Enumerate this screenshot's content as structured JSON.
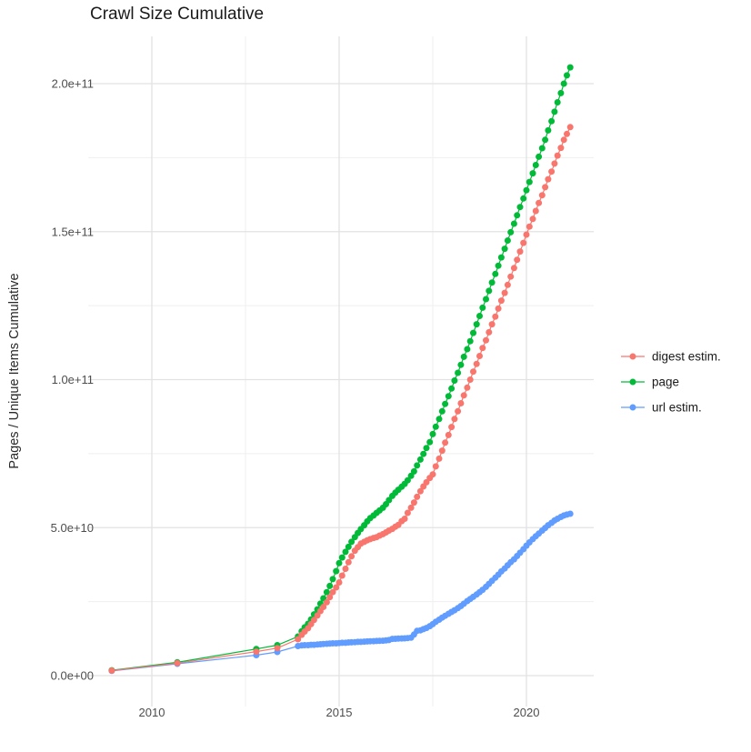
{
  "title": "Crawl Size Cumulative",
  "axes": {
    "y_title": "Pages / Unique Items Cumulative",
    "y_ticks": [
      {
        "label": "0.0e+00",
        "value_billions": 0
      },
      {
        "label": "5.0e+10",
        "value_billions": 50
      },
      {
        "label": "1.0e+11",
        "value_billions": 100
      },
      {
        "label": "1.5e+11",
        "value_billions": 150
      },
      {
        "label": "2.0e+11",
        "value_billions": 200
      }
    ],
    "x_ticks": [
      {
        "label": "2010",
        "value": 2010
      },
      {
        "label": "2015",
        "value": 2015
      },
      {
        "label": "2020",
        "value": 2020
      }
    ]
  },
  "legend": {
    "items": [
      {
        "label": "digest estim.",
        "color": "#F8766D"
      },
      {
        "label": "page",
        "color": "#00BA38"
      },
      {
        "label": "url estim.",
        "color": "#619CFF"
      }
    ]
  },
  "chart_data": {
    "type": "line",
    "title": "Crawl Size Cumulative",
    "xlabel": "",
    "ylabel": "Pages / Unique Items Cumulative",
    "x_unit": "year (decimal)",
    "y_unit": "cumulative count, stored in billions (1e9)",
    "xlim": [
      2008.3,
      2021.8
    ],
    "ylim_billions": [
      0,
      205.5
    ],
    "grid": "on",
    "legend_position": "right",
    "marker": "point-with-line",
    "series": [
      {
        "name": "digest estim.",
        "color": "#F8766D",
        "points_year_billions": [
          [
            2008.93,
            1.7
          ],
          [
            2010.68,
            4.2
          ],
          [
            2012.79,
            8.1
          ],
          [
            2013.35,
            9.3
          ],
          [
            2013.9,
            12.3
          ],
          [
            2014.0,
            13.8
          ],
          [
            2014.08,
            14.9
          ],
          [
            2014.17,
            16.0
          ],
          [
            2014.25,
            17.4
          ],
          [
            2014.33,
            18.8
          ],
          [
            2014.42,
            20.3
          ],
          [
            2014.5,
            21.8
          ],
          [
            2014.58,
            23.2
          ],
          [
            2014.67,
            24.8
          ],
          [
            2014.75,
            26.5
          ],
          [
            2014.83,
            28.2
          ],
          [
            2014.92,
            29.8
          ],
          [
            2015.0,
            31.5
          ],
          [
            2015.08,
            33.8
          ],
          [
            2015.17,
            36.1
          ],
          [
            2015.25,
            38.3
          ],
          [
            2015.33,
            40.3
          ],
          [
            2015.42,
            42.2
          ],
          [
            2015.5,
            43.4
          ],
          [
            2015.58,
            44.6
          ],
          [
            2015.67,
            45.2
          ],
          [
            2015.75,
            45.7
          ],
          [
            2015.83,
            46.1
          ],
          [
            2015.92,
            46.5
          ],
          [
            2016.0,
            46.8
          ],
          [
            2016.08,
            47.3
          ],
          [
            2016.17,
            47.8
          ],
          [
            2016.25,
            48.4
          ],
          [
            2016.33,
            49.0
          ],
          [
            2016.42,
            49.6
          ],
          [
            2016.5,
            50.3
          ],
          [
            2016.58,
            50.9
          ],
          [
            2016.67,
            52.2
          ],
          [
            2016.75,
            53.0
          ],
          [
            2016.83,
            55.0
          ],
          [
            2016.92,
            56.7
          ],
          [
            2017.0,
            58.5
          ],
          [
            2017.08,
            60.4
          ],
          [
            2017.17,
            62.3
          ],
          [
            2017.25,
            63.9
          ],
          [
            2017.33,
            65.3
          ],
          [
            2017.42,
            66.8
          ],
          [
            2017.5,
            68.0
          ],
          [
            2017.58,
            70.7
          ],
          [
            2017.67,
            73.3
          ],
          [
            2017.75,
            76.0
          ],
          [
            2017.83,
            78.7
          ],
          [
            2017.92,
            81.3
          ],
          [
            2018.0,
            84.0
          ],
          [
            2018.08,
            86.7
          ],
          [
            2018.17,
            89.3
          ],
          [
            2018.25,
            92.0
          ],
          [
            2018.33,
            94.7
          ],
          [
            2018.42,
            97.3
          ],
          [
            2018.5,
            100.0
          ],
          [
            2018.58,
            102.7
          ],
          [
            2018.67,
            105.3
          ],
          [
            2018.75,
            108.0
          ],
          [
            2018.83,
            110.7
          ],
          [
            2018.92,
            113.3
          ],
          [
            2019.0,
            116.0
          ],
          [
            2019.08,
            118.7
          ],
          [
            2019.17,
            121.3
          ],
          [
            2019.25,
            124.0
          ],
          [
            2019.33,
            126.7
          ],
          [
            2019.42,
            129.3
          ],
          [
            2019.5,
            132.0
          ],
          [
            2019.58,
            134.8
          ],
          [
            2019.67,
            137.7
          ],
          [
            2019.75,
            140.5
          ],
          [
            2019.83,
            143.3
          ],
          [
            2019.92,
            146.2
          ],
          [
            2020.0,
            149.0
          ],
          [
            2020.08,
            151.7
          ],
          [
            2020.17,
            154.3
          ],
          [
            2020.25,
            157.0
          ],
          [
            2020.33,
            159.7
          ],
          [
            2020.42,
            162.3
          ],
          [
            2020.5,
            165.0
          ],
          [
            2020.58,
            167.7
          ],
          [
            2020.67,
            170.3
          ],
          [
            2020.75,
            173.0
          ],
          [
            2020.83,
            175.7
          ],
          [
            2020.92,
            178.3
          ],
          [
            2021.0,
            181.0
          ],
          [
            2021.08,
            183.0
          ],
          [
            2021.17,
            185.3
          ]
        ]
      },
      {
        "name": "page",
        "color": "#00BA38",
        "points_year_billions": [
          [
            2008.93,
            1.8
          ],
          [
            2010.68,
            4.5
          ],
          [
            2012.79,
            9.0
          ],
          [
            2013.35,
            10.3
          ],
          [
            2013.9,
            13.2
          ],
          [
            2014.0,
            15.0
          ],
          [
            2014.08,
            16.3
          ],
          [
            2014.17,
            17.5
          ],
          [
            2014.25,
            19.0
          ],
          [
            2014.33,
            20.7
          ],
          [
            2014.42,
            22.4
          ],
          [
            2014.5,
            24.3
          ],
          [
            2014.58,
            26.1
          ],
          [
            2014.67,
            28.2
          ],
          [
            2014.75,
            30.3
          ],
          [
            2014.83,
            32.6
          ],
          [
            2014.92,
            35.3
          ],
          [
            2015.0,
            38.0
          ],
          [
            2015.08,
            39.9
          ],
          [
            2015.17,
            41.8
          ],
          [
            2015.25,
            43.5
          ],
          [
            2015.33,
            45.2
          ],
          [
            2015.42,
            46.8
          ],
          [
            2015.5,
            48.2
          ],
          [
            2015.58,
            49.5
          ],
          [
            2015.67,
            50.8
          ],
          [
            2015.75,
            52.1
          ],
          [
            2015.83,
            53.2
          ],
          [
            2015.92,
            54.1
          ],
          [
            2016.0,
            55.0
          ],
          [
            2016.08,
            55.8
          ],
          [
            2016.17,
            56.7
          ],
          [
            2016.25,
            57.9
          ],
          [
            2016.33,
            59.3
          ],
          [
            2016.42,
            60.7
          ],
          [
            2016.5,
            61.8
          ],
          [
            2016.58,
            62.8
          ],
          [
            2016.67,
            63.8
          ],
          [
            2016.75,
            64.8
          ],
          [
            2016.83,
            66.0
          ],
          [
            2016.92,
            67.5
          ],
          [
            2017.0,
            69.0
          ],
          [
            2017.08,
            71.0
          ],
          [
            2017.17,
            73.0
          ],
          [
            2017.25,
            74.9
          ],
          [
            2017.33,
            76.9
          ],
          [
            2017.42,
            78.9
          ],
          [
            2017.5,
            81.6
          ],
          [
            2017.58,
            84.1
          ],
          [
            2017.67,
            86.7
          ],
          [
            2017.75,
            89.3
          ],
          [
            2017.83,
            91.8
          ],
          [
            2017.92,
            94.4
          ],
          [
            2018.0,
            97.0
          ],
          [
            2018.08,
            99.7
          ],
          [
            2018.17,
            102.3
          ],
          [
            2018.25,
            105.0
          ],
          [
            2018.33,
            107.7
          ],
          [
            2018.42,
            110.3
          ],
          [
            2018.5,
            113.0
          ],
          [
            2018.58,
            115.8
          ],
          [
            2018.67,
            118.7
          ],
          [
            2018.75,
            121.5
          ],
          [
            2018.83,
            124.3
          ],
          [
            2018.92,
            127.2
          ],
          [
            2019.0,
            130.0
          ],
          [
            2019.08,
            132.8
          ],
          [
            2019.17,
            135.7
          ],
          [
            2019.25,
            138.5
          ],
          [
            2019.33,
            141.3
          ],
          [
            2019.42,
            144.2
          ],
          [
            2019.5,
            147.0
          ],
          [
            2019.58,
            149.8
          ],
          [
            2019.67,
            152.7
          ],
          [
            2019.75,
            155.5
          ],
          [
            2019.83,
            158.3
          ],
          [
            2019.92,
            161.2
          ],
          [
            2020.0,
            164.0
          ],
          [
            2020.08,
            166.8
          ],
          [
            2020.17,
            169.7
          ],
          [
            2020.25,
            172.5
          ],
          [
            2020.33,
            175.3
          ],
          [
            2020.42,
            178.2
          ],
          [
            2020.5,
            181.0
          ],
          [
            2020.58,
            184.2
          ],
          [
            2020.67,
            187.3
          ],
          [
            2020.75,
            190.5
          ],
          [
            2020.83,
            193.7
          ],
          [
            2020.92,
            196.8
          ],
          [
            2021.0,
            200.0
          ],
          [
            2021.08,
            202.8
          ],
          [
            2021.17,
            205.5
          ]
        ]
      },
      {
        "name": "url estim.",
        "color": "#619CFF",
        "points_year_billions": [
          [
            2008.93,
            1.6
          ],
          [
            2010.68,
            4.0
          ],
          [
            2012.79,
            6.9
          ],
          [
            2013.35,
            8.0
          ],
          [
            2013.9,
            10.0
          ],
          [
            2014.0,
            10.2
          ],
          [
            2014.08,
            10.3
          ],
          [
            2014.17,
            10.3
          ],
          [
            2014.25,
            10.4
          ],
          [
            2014.33,
            10.4
          ],
          [
            2014.42,
            10.5
          ],
          [
            2014.5,
            10.6
          ],
          [
            2014.58,
            10.7
          ],
          [
            2014.67,
            10.75
          ],
          [
            2014.75,
            10.8
          ],
          [
            2014.83,
            10.9
          ],
          [
            2014.92,
            10.9
          ],
          [
            2015.0,
            11.0
          ],
          [
            2015.08,
            11.1
          ],
          [
            2015.17,
            11.1
          ],
          [
            2015.25,
            11.2
          ],
          [
            2015.33,
            11.25
          ],
          [
            2015.42,
            11.3
          ],
          [
            2015.5,
            11.4
          ],
          [
            2015.58,
            11.4
          ],
          [
            2015.67,
            11.5
          ],
          [
            2015.75,
            11.55
          ],
          [
            2015.83,
            11.6
          ],
          [
            2015.92,
            11.65
          ],
          [
            2016.0,
            11.7
          ],
          [
            2016.08,
            11.75
          ],
          [
            2016.17,
            11.8
          ],
          [
            2016.25,
            11.9
          ],
          [
            2016.33,
            12.0
          ],
          [
            2016.42,
            12.4
          ],
          [
            2016.5,
            12.45
          ],
          [
            2016.58,
            12.5
          ],
          [
            2016.67,
            12.55
          ],
          [
            2016.75,
            12.6
          ],
          [
            2016.83,
            12.7
          ],
          [
            2016.92,
            12.8
          ],
          [
            2017.0,
            13.9
          ],
          [
            2017.08,
            15.1
          ],
          [
            2017.17,
            15.3
          ],
          [
            2017.25,
            15.7
          ],
          [
            2017.33,
            16.1
          ],
          [
            2017.42,
            16.7
          ],
          [
            2017.5,
            17.4
          ],
          [
            2017.58,
            18.2
          ],
          [
            2017.67,
            18.9
          ],
          [
            2017.75,
            19.6
          ],
          [
            2017.83,
            20.2
          ],
          [
            2017.92,
            20.9
          ],
          [
            2018.0,
            21.5
          ],
          [
            2018.08,
            22.1
          ],
          [
            2018.17,
            22.8
          ],
          [
            2018.25,
            23.5
          ],
          [
            2018.33,
            24.3
          ],
          [
            2018.42,
            25.2
          ],
          [
            2018.5,
            25.9
          ],
          [
            2018.58,
            26.6
          ],
          [
            2018.67,
            27.4
          ],
          [
            2018.75,
            28.2
          ],
          [
            2018.83,
            29.0
          ],
          [
            2018.92,
            30.0
          ],
          [
            2019.0,
            31.0
          ],
          [
            2019.08,
            32.0
          ],
          [
            2019.17,
            33.1
          ],
          [
            2019.25,
            34.1
          ],
          [
            2019.33,
            35.2
          ],
          [
            2019.42,
            36.2
          ],
          [
            2019.5,
            37.3
          ],
          [
            2019.58,
            38.3
          ],
          [
            2019.67,
            39.3
          ],
          [
            2019.75,
            40.4
          ],
          [
            2019.83,
            41.5
          ],
          [
            2019.92,
            42.7
          ],
          [
            2020.0,
            43.9
          ],
          [
            2020.08,
            45.0
          ],
          [
            2020.17,
            46.1
          ],
          [
            2020.25,
            47.1
          ],
          [
            2020.33,
            48.0
          ],
          [
            2020.42,
            49.0
          ],
          [
            2020.5,
            49.9
          ],
          [
            2020.58,
            50.8
          ],
          [
            2020.67,
            51.6
          ],
          [
            2020.75,
            52.4
          ],
          [
            2020.83,
            53.0
          ],
          [
            2020.92,
            53.6
          ],
          [
            2021.0,
            54.1
          ],
          [
            2021.08,
            54.4
          ],
          [
            2021.17,
            54.7
          ]
        ]
      }
    ],
    "minor_gridlines_x": [
      2012.5,
      2017.5
    ],
    "minor_gridlines_y_billions": [
      25,
      75,
      125,
      175
    ]
  }
}
